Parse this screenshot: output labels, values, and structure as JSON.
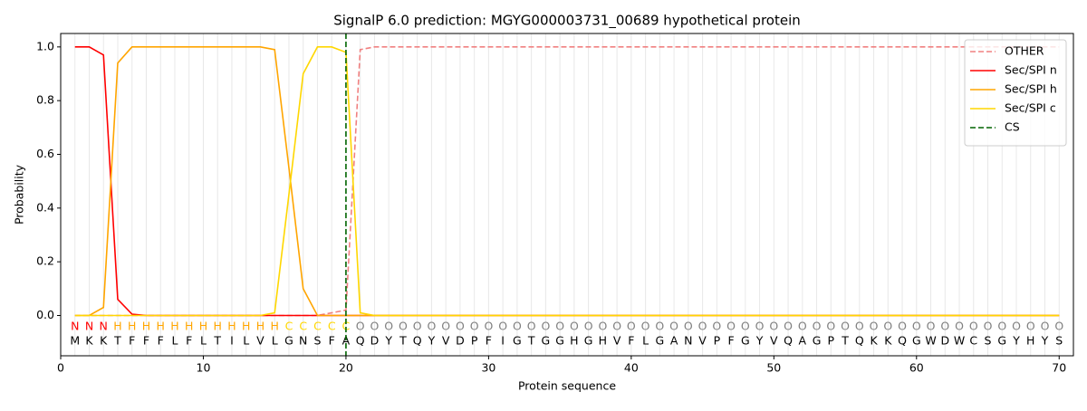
{
  "chart_data": {
    "type": "line",
    "title": "SignalP 6.0 prediction: MGYG000003731_00689 hypothetical protein",
    "x_label": "Protein sequence",
    "y_label": "Probability",
    "x": [
      1,
      2,
      3,
      4,
      5,
      6,
      7,
      8,
      9,
      10,
      11,
      12,
      13,
      14,
      15,
      16,
      17,
      18,
      19,
      20,
      21,
      22,
      23,
      24,
      25,
      26,
      27,
      28,
      29,
      30,
      31,
      32,
      33,
      34,
      35,
      36,
      37,
      38,
      39,
      40,
      41,
      42,
      43,
      44,
      45,
      46,
      47,
      48,
      49,
      50,
      51,
      52,
      53,
      54,
      55,
      56,
      57,
      58,
      59,
      60,
      61,
      62,
      63,
      64,
      65,
      66,
      67,
      68,
      69,
      70
    ],
    "sequence": [
      "M",
      "K",
      "K",
      "T",
      "F",
      "F",
      "F",
      "L",
      "F",
      "L",
      "T",
      "I",
      "L",
      "V",
      "L",
      "G",
      "N",
      "S",
      "F",
      "A",
      "Q",
      "D",
      "Y",
      "T",
      "Q",
      "Y",
      "V",
      "D",
      "P",
      "F",
      "I",
      "G",
      "T",
      "G",
      "G",
      "H",
      "G",
      "H",
      "V",
      "F",
      "L",
      "G",
      "A",
      "N",
      "V",
      "P",
      "F",
      "G",
      "Y",
      "V",
      "Q",
      "A",
      "G",
      "P",
      "T",
      "Q",
      "K",
      "K",
      "Q",
      "G",
      "W",
      "D",
      "W",
      "C",
      "S",
      "G",
      "Y",
      "H",
      "Y",
      "S"
    ],
    "region_labels": [
      "N",
      "N",
      "N",
      "H",
      "H",
      "H",
      "H",
      "H",
      "H",
      "H",
      "H",
      "H",
      "H",
      "H",
      "H",
      "C",
      "C",
      "C",
      "C",
      "C",
      "O",
      "O",
      "O",
      "O",
      "O",
      "O",
      "O",
      "O",
      "O",
      "O",
      "O",
      "O",
      "O",
      "O",
      "O",
      "O",
      "O",
      "O",
      "O",
      "O",
      "O",
      "O",
      "O",
      "O",
      "O",
      "O",
      "O",
      "O",
      "O",
      "O",
      "O",
      "O",
      "O",
      "O",
      "O",
      "O",
      "O",
      "O",
      "O",
      "O",
      "O",
      "O",
      "O",
      "O",
      "O",
      "O",
      "O",
      "O",
      "O",
      "O"
    ],
    "region_label_colors": {
      "N": "#ff0000",
      "H": "#ffa500",
      "C": "#ffd700",
      "O": "#808080"
    },
    "series": [
      {
        "name": "OTHER",
        "color": "#f08080",
        "dashed": true,
        "values": [
          0,
          0,
          0,
          0,
          0,
          0,
          0,
          0,
          0,
          0,
          0,
          0,
          0,
          0,
          0,
          0,
          0,
          0,
          0.01,
          0.02,
          0.99,
          1,
          1,
          1,
          1,
          1,
          1,
          1,
          1,
          1,
          1,
          1,
          1,
          1,
          1,
          1,
          1,
          1,
          1,
          1,
          1,
          1,
          1,
          1,
          1,
          1,
          1,
          1,
          1,
          1,
          1,
          1,
          1,
          1,
          1,
          1,
          1,
          1,
          1,
          1,
          1,
          1,
          1,
          1,
          1,
          1,
          1,
          1,
          1,
          1
        ]
      },
      {
        "name": "Sec/SPI n",
        "color": "#ff0000",
        "dashed": false,
        "values": [
          1,
          1,
          0.97,
          0.06,
          0.005,
          0,
          0,
          0,
          0,
          0,
          0,
          0,
          0,
          0,
          0,
          0,
          0,
          0,
          0,
          0,
          0,
          0,
          0,
          0,
          0,
          0,
          0,
          0,
          0,
          0,
          0,
          0,
          0,
          0,
          0,
          0,
          0,
          0,
          0,
          0,
          0,
          0,
          0,
          0,
          0,
          0,
          0,
          0,
          0,
          0,
          0,
          0,
          0,
          0,
          0,
          0,
          0,
          0,
          0,
          0,
          0,
          0,
          0,
          0,
          0,
          0,
          0,
          0,
          0,
          0
        ]
      },
      {
        "name": "Sec/SPI h",
        "color": "#ffa500",
        "dashed": false,
        "values": [
          0,
          0,
          0.03,
          0.94,
          1,
          1,
          1,
          1,
          1,
          1,
          1,
          1,
          1,
          1,
          0.99,
          0.55,
          0.1,
          0,
          0,
          0,
          0,
          0,
          0,
          0,
          0,
          0,
          0,
          0,
          0,
          0,
          0,
          0,
          0,
          0,
          0,
          0,
          0,
          0,
          0,
          0,
          0,
          0,
          0,
          0,
          0,
          0,
          0,
          0,
          0,
          0,
          0,
          0,
          0,
          0,
          0,
          0,
          0,
          0,
          0,
          0,
          0,
          0,
          0,
          0,
          0,
          0,
          0,
          0,
          0,
          0
        ]
      },
      {
        "name": "Sec/SPI c",
        "color": "#ffd700",
        "dashed": false,
        "values": [
          0,
          0,
          0,
          0,
          0,
          0,
          0,
          0,
          0,
          0,
          0,
          0,
          0,
          0,
          0.01,
          0.45,
          0.9,
          1,
          1,
          0.98,
          0.01,
          0,
          0,
          0,
          0,
          0,
          0,
          0,
          0,
          0,
          0,
          0,
          0,
          0,
          0,
          0,
          0,
          0,
          0,
          0,
          0,
          0,
          0,
          0,
          0,
          0,
          0,
          0,
          0,
          0,
          0,
          0,
          0,
          0,
          0,
          0,
          0,
          0,
          0,
          0,
          0,
          0,
          0,
          0,
          0,
          0,
          0,
          0,
          0,
          0
        ]
      }
    ],
    "vlines": [
      {
        "name": "CS",
        "x": 20,
        "color": "#006400"
      }
    ],
    "xlim": [
      0,
      71
    ],
    "ylim": [
      -0.15,
      1.05
    ],
    "xticks": [
      0,
      10,
      20,
      30,
      40,
      50,
      60,
      70
    ],
    "yticks": [
      {
        "value": 0,
        "label": "0.0"
      },
      {
        "value": 0.2,
        "label": "0.2"
      },
      {
        "value": 0.4,
        "label": "0.4"
      },
      {
        "value": 0.6,
        "label": "0.6"
      },
      {
        "value": 0.8,
        "label": "0.8"
      },
      {
        "value": 1,
        "label": "1.0"
      }
    ],
    "legend": "upper right"
  }
}
